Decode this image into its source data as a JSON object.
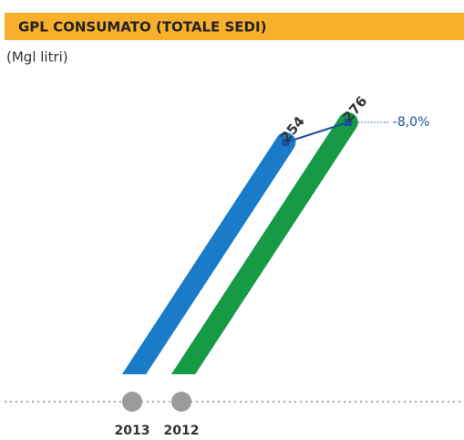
{
  "chart_data": {
    "type": "bar",
    "title": "GPL CONSUMATO (TOTALE SEDI)",
    "subtitle": "(Mgl litri)",
    "categories": [
      "2013",
      "2012"
    ],
    "values": [
      254,
      276
    ],
    "colors": [
      "#1a7bc8",
      "#169a45"
    ],
    "annotation": "-8,0%"
  }
}
